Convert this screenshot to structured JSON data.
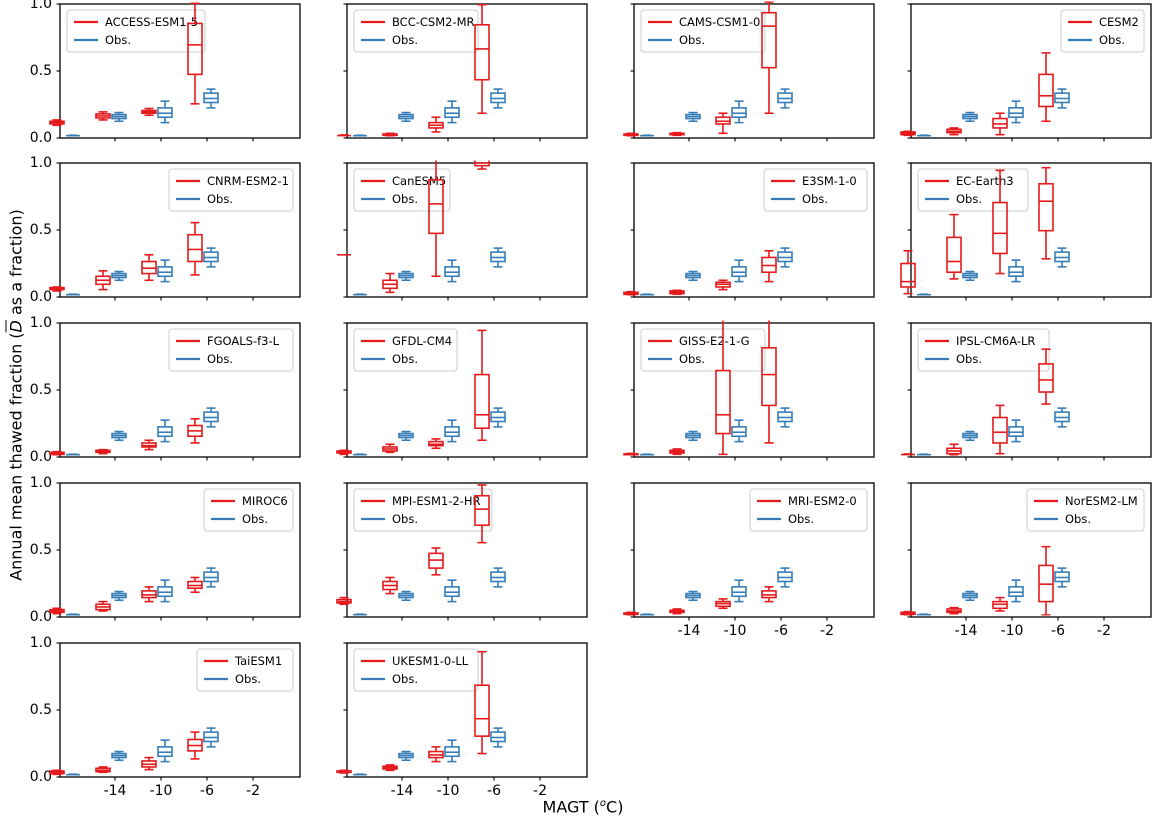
{
  "figure": {
    "ylabel": {
      "pre": "Annual mean thawed fraction (",
      "dbar": "D",
      "post": " as a fraction)"
    },
    "xlabel": {
      "pre": "MAGT (",
      "sup": "o",
      "post": "C)"
    }
  },
  "chart_data": {
    "type": "boxplot",
    "grid": {
      "rows": 5,
      "cols": 4,
      "note": "18 subplots; each compares one climate model (red) against observations (blue)"
    },
    "x_categories": [
      -14,
      -10,
      -6,
      -2
    ],
    "x_tick_labels": [
      "-14",
      "-10",
      "-6",
      "-2"
    ],
    "y_tick_labels": [
      "0.0",
      "0.5",
      "1.0"
    ],
    "ylim": [
      0,
      1
    ],
    "xlabel": "MAGT (oC)",
    "ylabel": "Annual mean thawed fraction (D as a fraction)",
    "legend_position_note": "per-panel legend: model name (red) above Obs. (blue)",
    "colors": {
      "model": "#e41a1c",
      "obs": "#377eb8",
      "legend_edge": "#cccccc"
    },
    "obs_label": "Obs.",
    "box_stats_order": [
      "whisker_low",
      "q1",
      "median",
      "q3",
      "whisker_high"
    ],
    "obs_boxes": [
      [
        0.0,
        0.0,
        0.002,
        0.004,
        0.006
      ],
      [
        0.11,
        0.13,
        0.145,
        0.16,
        0.175
      ],
      [
        0.1,
        0.14,
        0.17,
        0.21,
        0.26
      ],
      [
        0.21,
        0.25,
        0.28,
        0.32,
        0.35
      ]
    ],
    "panels": [
      {
        "model": "ACCESS-ESM1-5",
        "legend": "left",
        "model_boxes": [
          [
            0.08,
            0.09,
            0.1,
            0.11,
            0.12
          ],
          [
            0.12,
            0.135,
            0.15,
            0.165,
            0.18
          ],
          [
            0.155,
            0.17,
            0.18,
            0.19,
            0.205
          ],
          [
            0.24,
            0.46,
            0.68,
            0.84,
            0.99
          ]
        ]
      },
      {
        "model": "BCC-CSM2-MR",
        "legend": "left",
        "model_boxes": [
          [
            0.0,
            0.0,
            0.003,
            0.005,
            0.008
          ],
          [
            0.0,
            0.005,
            0.01,
            0.015,
            0.02
          ],
          [
            0.03,
            0.06,
            0.08,
            0.1,
            0.14
          ],
          [
            0.17,
            0.42,
            0.65,
            0.83,
            0.98
          ]
        ]
      },
      {
        "model": "CAMS-CSM1-0",
        "legend": "left",
        "model_boxes": [
          [
            0.0,
            0.005,
            0.01,
            0.015,
            0.02
          ],
          [
            0.005,
            0.01,
            0.015,
            0.02,
            0.025
          ],
          [
            0.02,
            0.09,
            0.11,
            0.14,
            0.17
          ],
          [
            0.17,
            0.51,
            0.82,
            0.92,
            1.0
          ]
        ]
      },
      {
        "model": "CESM2",
        "legend": "right",
        "model_boxes": [
          [
            0.005,
            0.01,
            0.02,
            0.03,
            0.035
          ],
          [
            0.01,
            0.025,
            0.035,
            0.05,
            0.06
          ],
          [
            0.01,
            0.06,
            0.09,
            0.13,
            0.17
          ],
          [
            0.11,
            0.22,
            0.3,
            0.46,
            0.62
          ]
        ]
      },
      {
        "model": "CNRM-ESM2-1",
        "legend": "right",
        "model_boxes": [
          [
            0.03,
            0.04,
            0.045,
            0.055,
            0.06
          ],
          [
            0.04,
            0.08,
            0.11,
            0.14,
            0.18
          ],
          [
            0.11,
            0.16,
            0.2,
            0.25,
            0.3
          ],
          [
            0.15,
            0.25,
            0.34,
            0.45,
            0.54
          ]
        ]
      },
      {
        "model": "CanESM5",
        "legend": "left",
        "model_boxes": [
          [
            0.3,
            0.3,
            0.3,
            0.3,
            0.3
          ],
          [
            0.02,
            0.05,
            0.08,
            0.11,
            0.16
          ],
          [
            0.14,
            0.46,
            0.68,
            0.86,
            1.06
          ],
          [
            0.94,
            0.965,
            0.985,
            1.06,
            1.08
          ]
        ]
      },
      {
        "model": "E3SM-1-0",
        "legend": "right",
        "model_boxes": [
          [
            0.0,
            0.005,
            0.01,
            0.02,
            0.025
          ],
          [
            0.005,
            0.01,
            0.02,
            0.03,
            0.035
          ],
          [
            0.04,
            0.06,
            0.08,
            0.095,
            0.11
          ],
          [
            0.1,
            0.17,
            0.22,
            0.28,
            0.33
          ]
        ]
      },
      {
        "model": "EC-Earth3",
        "legend": "left",
        "model_boxes": [
          [
            0.01,
            0.06,
            0.1,
            0.235,
            0.33
          ],
          [
            0.12,
            0.17,
            0.25,
            0.43,
            0.6
          ],
          [
            0.16,
            0.31,
            0.46,
            0.69,
            0.93
          ],
          [
            0.27,
            0.48,
            0.7,
            0.83,
            0.95
          ]
        ]
      },
      {
        "model": "FGOALS-f3-L",
        "legend": "right",
        "model_boxes": [
          [
            0.0,
            0.005,
            0.01,
            0.02,
            0.025
          ],
          [
            0.01,
            0.02,
            0.025,
            0.035,
            0.04
          ],
          [
            0.04,
            0.06,
            0.07,
            0.09,
            0.11
          ],
          [
            0.09,
            0.14,
            0.18,
            0.22,
            0.27
          ]
        ]
      },
      {
        "model": "GFDL-CM4",
        "legend": "left",
        "model_boxes": [
          [
            0.005,
            0.015,
            0.02,
            0.03,
            0.035
          ],
          [
            0.02,
            0.03,
            0.045,
            0.06,
            0.08
          ],
          [
            0.05,
            0.07,
            0.08,
            0.1,
            0.12
          ],
          [
            0.11,
            0.2,
            0.3,
            0.6,
            0.93
          ]
        ]
      },
      {
        "model": "GISS-E2-1-G",
        "legend": "left",
        "model_boxes": [
          [
            0.0,
            0.0,
            0.005,
            0.008,
            0.012
          ],
          [
            0.005,
            0.015,
            0.025,
            0.035,
            0.045
          ],
          [
            0.005,
            0.16,
            0.3,
            0.63,
            1.06
          ],
          [
            0.09,
            0.37,
            0.6,
            0.8,
            1.06
          ]
        ]
      },
      {
        "model": "IPSL-CM6A-LR",
        "legend": "left",
        "model_boxes": [
          [
            0.0,
            0.0,
            0.003,
            0.005,
            0.008
          ],
          [
            0.0,
            0.01,
            0.03,
            0.05,
            0.08
          ],
          [
            0.01,
            0.09,
            0.17,
            0.28,
            0.37
          ],
          [
            0.38,
            0.47,
            0.56,
            0.68,
            0.79
          ]
        ]
      },
      {
        "model": "MIROC6",
        "legend": "right",
        "model_boxes": [
          [
            0.01,
            0.02,
            0.03,
            0.04,
            0.05
          ],
          [
            0.03,
            0.04,
            0.06,
            0.08,
            0.1
          ],
          [
            0.1,
            0.13,
            0.15,
            0.18,
            0.21
          ],
          [
            0.17,
            0.2,
            0.22,
            0.25,
            0.28
          ]
        ]
      },
      {
        "model": "MPI-ESM1-2-HR",
        "legend": "left",
        "model_boxes": [
          [
            0.08,
            0.09,
            0.1,
            0.115,
            0.13
          ],
          [
            0.16,
            0.19,
            0.22,
            0.25,
            0.28
          ],
          [
            0.3,
            0.35,
            0.41,
            0.46,
            0.5
          ],
          [
            0.54,
            0.67,
            0.79,
            0.89,
            0.97
          ]
        ]
      },
      {
        "model": "MRI-ESM2-0",
        "legend": "right",
        "model_boxes": [
          [
            0.0,
            0.005,
            0.01,
            0.015,
            0.02
          ],
          [
            0.01,
            0.02,
            0.025,
            0.035,
            0.045
          ],
          [
            0.05,
            0.065,
            0.085,
            0.1,
            0.12
          ],
          [
            0.1,
            0.13,
            0.15,
            0.18,
            0.21
          ]
        ]
      },
      {
        "model": "NorESM2-LM",
        "legend": "right",
        "model_boxes": [
          [
            0.0,
            0.005,
            0.015,
            0.02,
            0.025
          ],
          [
            0.01,
            0.02,
            0.03,
            0.045,
            0.055
          ],
          [
            0.03,
            0.05,
            0.08,
            0.1,
            0.13
          ],
          [
            0.0,
            0.1,
            0.23,
            0.37,
            0.51
          ]
        ]
      },
      {
        "model": "TaiESM1",
        "legend": "right",
        "model_boxes": [
          [
            0.005,
            0.01,
            0.02,
            0.03,
            0.035
          ],
          [
            0.02,
            0.025,
            0.035,
            0.05,
            0.06
          ],
          [
            0.04,
            0.06,
            0.08,
            0.105,
            0.13
          ],
          [
            0.12,
            0.18,
            0.22,
            0.265,
            0.32
          ]
        ]
      },
      {
        "model": "UKESM1-0-LL",
        "legend": "left",
        "model_boxes": [
          [
            0.015,
            0.02,
            0.025,
            0.03,
            0.035
          ],
          [
            0.035,
            0.045,
            0.055,
            0.065,
            0.075
          ],
          [
            0.1,
            0.13,
            0.15,
            0.175,
            0.21
          ],
          [
            0.16,
            0.29,
            0.42,
            0.67,
            0.92
          ]
        ]
      }
    ]
  }
}
